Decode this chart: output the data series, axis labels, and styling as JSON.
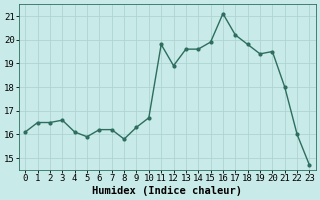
{
  "x": [
    0,
    1,
    2,
    3,
    4,
    5,
    6,
    7,
    8,
    9,
    10,
    11,
    12,
    13,
    14,
    15,
    16,
    17,
    18,
    19,
    20,
    21,
    22,
    23
  ],
  "y": [
    16.1,
    16.5,
    16.5,
    16.6,
    16.1,
    15.9,
    16.2,
    16.2,
    15.8,
    16.3,
    16.7,
    19.8,
    18.9,
    19.6,
    19.6,
    19.9,
    21.1,
    20.2,
    19.8,
    19.4,
    19.5,
    18.0,
    16.0,
    14.7
  ],
  "line_color": "#2d6e5e",
  "marker": "o",
  "marker_size": 2.0,
  "bg_color": "#c8eae8",
  "grid_color": "#aed4d2",
  "xlabel": "Humidex (Indice chaleur)",
  "ylabel_ticks": [
    15,
    16,
    17,
    18,
    19,
    20,
    21
  ],
  "xtick_labels": [
    "0",
    "1",
    "2",
    "3",
    "4",
    "5",
    "6",
    "7",
    "8",
    "9",
    "10",
    "11",
    "12",
    "13",
    "14",
    "15",
    "16",
    "17",
    "18",
    "19",
    "20",
    "21",
    "22",
    "23"
  ],
  "ylim": [
    14.5,
    21.5
  ],
  "xlim": [
    -0.5,
    23.5
  ],
  "xlabel_fontsize": 7.5,
  "tick_fontsize": 6.5,
  "line_width": 1.0
}
